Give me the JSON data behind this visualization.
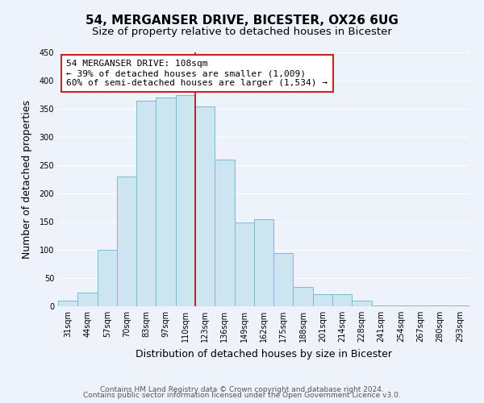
{
  "title": "54, MERGANSER DRIVE, BICESTER, OX26 6UG",
  "subtitle": "Size of property relative to detached houses in Bicester",
  "xlabel": "Distribution of detached houses by size in Bicester",
  "ylabel": "Number of detached properties",
  "bar_labels": [
    "31sqm",
    "44sqm",
    "57sqm",
    "70sqm",
    "83sqm",
    "97sqm",
    "110sqm",
    "123sqm",
    "136sqm",
    "149sqm",
    "162sqm",
    "175sqm",
    "188sqm",
    "201sqm",
    "214sqm",
    "228sqm",
    "241sqm",
    "254sqm",
    "267sqm",
    "280sqm",
    "293sqm"
  ],
  "bar_values": [
    10,
    25,
    100,
    230,
    365,
    370,
    375,
    355,
    260,
    148,
    155,
    95,
    35,
    22,
    22,
    10,
    2,
    2,
    2,
    2,
    2
  ],
  "bar_color": "#cce5f0",
  "bar_edge_color": "#7db9d4",
  "red_line_x": 6.5,
  "annotation_box_text": "54 MERGANSER DRIVE: 108sqm\n← 39% of detached houses are smaller (1,009)\n60% of semi-detached houses are larger (1,534) →",
  "ylim": [
    0,
    450
  ],
  "yticks": [
    0,
    50,
    100,
    150,
    200,
    250,
    300,
    350,
    400,
    450
  ],
  "footer_line1": "Contains HM Land Registry data © Crown copyright and database right 2024.",
  "footer_line2": "Contains public sector information licensed under the Open Government Licence v3.0.",
  "background_color": "#eef2fb",
  "grid_color": "#ffffff",
  "title_fontsize": 11,
  "subtitle_fontsize": 9.5,
  "annotation_fontsize": 8,
  "axis_label_fontsize": 9,
  "tick_fontsize": 7,
  "footer_fontsize": 6.5
}
